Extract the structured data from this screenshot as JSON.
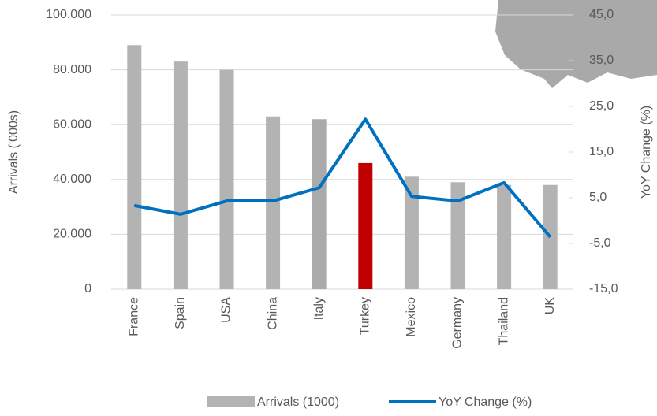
{
  "chart_data": {
    "type": "bar-line",
    "categories": [
      "France",
      "Spain",
      "USA",
      "China",
      "Italy",
      "Turkey",
      "Mexico",
      "Germany",
      "Thailand",
      "UK"
    ],
    "series": [
      {
        "name": "Arrivals (1000)",
        "type": "bar",
        "color": "#b3b3b3",
        "colors": [
          "#b3b3b3",
          "#b3b3b3",
          "#b3b3b3",
          "#b3b3b3",
          "#aaaaaa",
          "#c00000",
          "#b3b3b3",
          "#b3b3b3",
          "#b3b3b3",
          "#b3b3b3"
        ],
        "values": [
          89000,
          83000,
          80000,
          63000,
          62000,
          46000,
          41000,
          39000,
          38000,
          38000
        ]
      },
      {
        "name": "YoY Change (%)",
        "type": "line",
        "axis": "y2",
        "color": "#0070c0",
        "values": [
          3.3,
          1.4,
          4.3,
          4.3,
          7.2,
          22.2,
          5.3,
          4.3,
          8.3,
          -3.6
        ]
      }
    ],
    "ylabel": "Arrivals ('000s)",
    "y2label": "YoY Change (%)",
    "ylim": [
      0,
      100000
    ],
    "yticks": [
      0,
      {
        "value": 20000,
        "label": "20.000"
      },
      {
        "value": 40000,
        "label": "40.000"
      },
      {
        "value": 60000,
        "label": "60.000"
      },
      {
        "value": 80000,
        "label": "80.000"
      },
      {
        "value": 100000,
        "label": "100.000"
      }
    ],
    "y2lim": [
      -15,
      45
    ],
    "y2ticks": [
      {
        "value": -15,
        "label": "-15,0"
      },
      {
        "value": -5,
        "label": "-5,0"
      },
      {
        "value": 5,
        "label": "5,0"
      },
      {
        "value": 15,
        "label": "15,0"
      },
      {
        "value": 25,
        "label": "25,0"
      },
      {
        "value": 35,
        "label": "35,0"
      },
      {
        "value": 45,
        "label": "45,0"
      }
    ],
    "grid": true,
    "legend": "bottom"
  }
}
